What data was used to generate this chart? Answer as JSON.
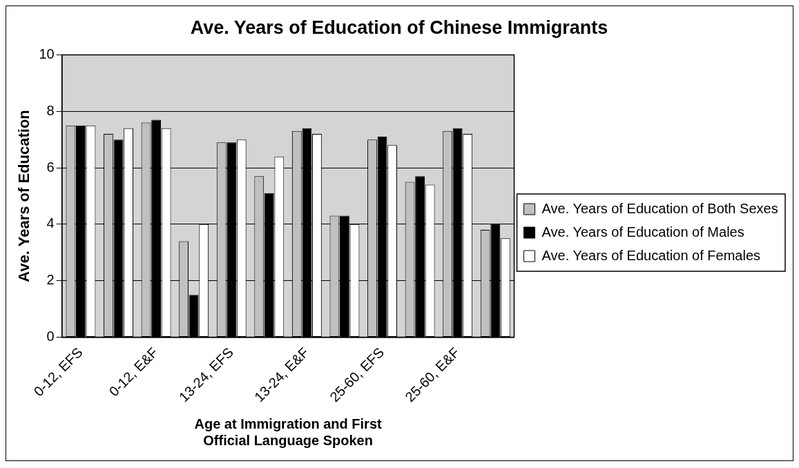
{
  "chart_data": {
    "type": "bar",
    "title": "Ave. Years of Education of Chinese Immigrants",
    "xlabel": "Age at Immigration and First Official Language Spoken",
    "ylabel": "Ave. Years of Education",
    "categories": [
      "0-12, EFS",
      null,
      "0-12, E&F",
      null,
      "13-24, EFS",
      null,
      "13-24, E&F",
      null,
      "25-60, EFS",
      null,
      "25-60, E&F",
      null
    ],
    "series": [
      {
        "name": "Ave. Years of Education of Both Sexes",
        "color": "#c0c0c0",
        "values": [
          7.5,
          7.2,
          7.6,
          3.4,
          6.9,
          5.7,
          7.3,
          4.3,
          7.0,
          5.5,
          7.3,
          3.8
        ]
      },
      {
        "name": "Ave. Years of Education of Males",
        "color": "#000000",
        "values": [
          7.5,
          7.0,
          7.7,
          1.5,
          6.9,
          5.1,
          7.4,
          4.3,
          7.1,
          5.7,
          7.4,
          4.0
        ]
      },
      {
        "name": "Ave. Years of Education of Females",
        "color": "#ffffff",
        "values": [
          7.5,
          7.4,
          7.4,
          4.0,
          7.0,
          6.4,
          7.2,
          4.0,
          6.8,
          5.4,
          7.2,
          3.5
        ]
      }
    ],
    "ylim": [
      0,
      10
    ],
    "yticks": [
      0,
      2,
      4,
      6,
      8,
      10
    ],
    "grid": "y",
    "legend": "right"
  }
}
